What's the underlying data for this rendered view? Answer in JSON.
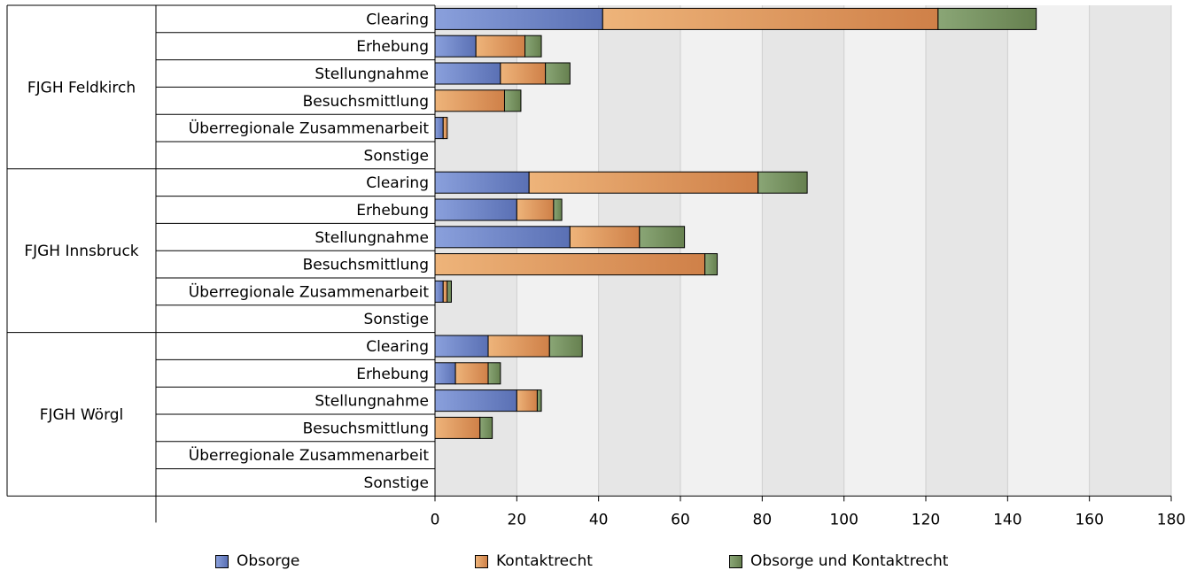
{
  "chart_data": {
    "type": "bar",
    "orientation": "horizontal",
    "stacked": true,
    "title": "",
    "xlim": [
      0,
      180
    ],
    "x_ticks": [
      0,
      20,
      40,
      60,
      80,
      100,
      120,
      140,
      160,
      180
    ],
    "grid": true,
    "legend_position": "bottom",
    "groups": [
      {
        "name": "FJGH Feldkirch",
        "categories": [
          "Clearing",
          "Erhebung",
          "Stellungnahme",
          "Besuchsmittlung",
          "Überregionale Zusammenarbeit",
          "Sonstige"
        ]
      },
      {
        "name": "FJGH Innsbruck",
        "categories": [
          "Clearing",
          "Erhebung",
          "Stellungnahme",
          "Besuchsmittlung",
          "Überregionale Zusammenarbeit",
          "Sonstige"
        ]
      },
      {
        "name": "FJGH Wörgl",
        "categories": [
          "Clearing",
          "Erhebung",
          "Stellungnahme",
          "Besuchsmittlung",
          "Überregionale Zusammenarbeit",
          "Sonstige"
        ]
      }
    ],
    "series": [
      {
        "name": "Obsorge",
        "color": "#6f86c6",
        "values": [
          41,
          10,
          16,
          0,
          2,
          0,
          23,
          20,
          33,
          0,
          2,
          0,
          13,
          5,
          20,
          0,
          0,
          0
        ]
      },
      {
        "name": "Kontaktrecht",
        "color": "#dd9558",
        "values": [
          82,
          12,
          11,
          17,
          1,
          0,
          56,
          9,
          17,
          66,
          1,
          0,
          15,
          8,
          5,
          11,
          0,
          0
        ]
      },
      {
        "name": "Obsorge und Kontaktrecht",
        "color": "#7a9366",
        "values": [
          24,
          4,
          6,
          4,
          0,
          0,
          12,
          2,
          11,
          3,
          1,
          0,
          8,
          3,
          1,
          3,
          0,
          0
        ]
      }
    ]
  }
}
